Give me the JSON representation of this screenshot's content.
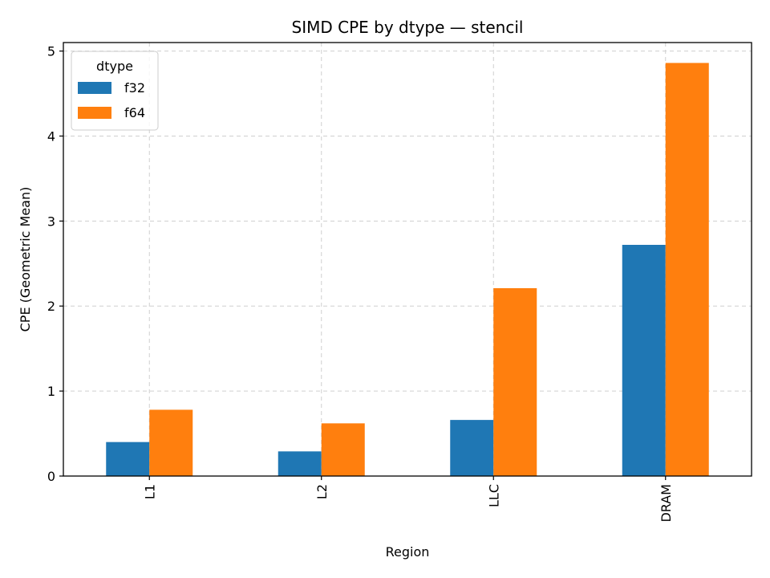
{
  "chart_data": {
    "type": "bar",
    "title": "SIMD CPE by dtype — stencil",
    "xlabel": "Region",
    "ylabel": "CPE (Geometric Mean)",
    "categories": [
      "L1",
      "L2",
      "LLC",
      "DRAM"
    ],
    "series": [
      {
        "name": "f32",
        "color": "#1f77b4",
        "values": [
          0.4,
          0.29,
          0.66,
          2.72
        ]
      },
      {
        "name": "f64",
        "color": "#ff7f0e",
        "values": [
          0.78,
          0.62,
          2.21,
          4.86
        ]
      }
    ],
    "ylim": [
      0,
      5.1
    ],
    "yticks": [
      0,
      1,
      2,
      3,
      4,
      5
    ],
    "grid": true,
    "legend": {
      "title": "dtype",
      "position": "top-left"
    },
    "xtick_rotation": "vertical"
  }
}
